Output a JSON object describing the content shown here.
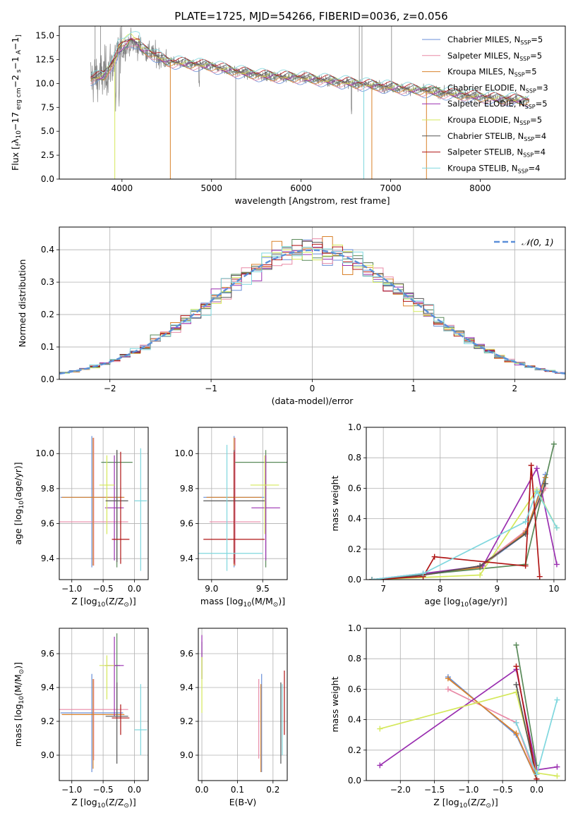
{
  "figure": {
    "title": "PLATE=1725, MJD=54266, FIBERID=0036, z=0.056"
  },
  "chart_data": [
    {
      "id": "spectrum",
      "type": "line",
      "title": "PLATE=1725, MJD=54266, FIBERID=0036, z=0.056",
      "xlabel": "wavelength [Angstrom, rest frame]",
      "ylabel_parts": [
        "Flux [",
        "f",
        "λ",
        "10",
        "−17",
        " erg cm",
        "−2",
        " s",
        "−1",
        " A",
        "−1",
        "]"
      ],
      "xlim": [
        3300,
        8950
      ],
      "ylim": [
        0,
        16
      ],
      "xticks": [
        4000,
        5000,
        6000,
        7000,
        8000
      ],
      "yticks": [
        0.0,
        2.5,
        5.0,
        7.5,
        10.0,
        12.5,
        15.0
      ],
      "legend_position": "top-right",
      "data_color": "#808080",
      "continuum": [
        [
          3650,
          10.5
        ],
        [
          3800,
          10.8
        ],
        [
          3950,
          13.0
        ],
        [
          4100,
          14.2
        ],
        [
          4300,
          13.3
        ],
        [
          4500,
          12.3
        ],
        [
          4800,
          12.0
        ],
        [
          5000,
          11.8
        ],
        [
          5300,
          11.2
        ],
        [
          5600,
          10.8
        ],
        [
          6000,
          10.6
        ],
        [
          6300,
          10.3
        ],
        [
          6600,
          10.0
        ],
        [
          7000,
          9.6
        ],
        [
          7400,
          9.2
        ],
        [
          7800,
          8.8
        ],
        [
          8200,
          8.4
        ],
        [
          8550,
          8.2
        ]
      ],
      "series": [
        {
          "name": "Chabrier MILES",
          "nssp": "5",
          "color": "#6a8fd8"
        },
        {
          "name": "Salpeter MILES",
          "nssp": "5",
          "color": "#e889a6"
        },
        {
          "name": "Kroupa MILES",
          "nssp": "5",
          "color": "#d9822b"
        },
        {
          "name": "Chabrier ELODIE",
          "nssp": "3",
          "color": "#5a8a5a"
        },
        {
          "name": "Salpeter ELODIE",
          "nssp": "5",
          "color": "#9a2fb0"
        },
        {
          "name": "Kroupa ELODIE",
          "nssp": "5",
          "color": "#d4e85a"
        },
        {
          "name": "Chabrier STELIB",
          "nssp": "4",
          "color": "#555555"
        },
        {
          "name": "Salpeter STELIB",
          "nssp": "4",
          "color": "#b01515"
        },
        {
          "name": "Kroupa STELIB",
          "nssp": "4",
          "color": "#7fd7de"
        }
      ]
    },
    {
      "id": "residuals",
      "type": "histogram",
      "xlabel": "(data-model)/error",
      "ylabel": "Normed distribution",
      "xlim": [
        -2.5,
        2.5
      ],
      "ylim": [
        0,
        0.47
      ],
      "xticks": [
        -2,
        -1,
        0,
        1,
        2
      ],
      "yticks": [
        0.0,
        0.1,
        0.2,
        0.3,
        0.4
      ],
      "legend": {
        "label": "𝒩(0, 1)",
        "position": "top-right"
      },
      "gaussian": {
        "mean": 0,
        "sigma": 1,
        "color": "#5b8fd8"
      },
      "bin_width": 0.1
    },
    {
      "id": "age_vs_Z",
      "type": "scatter",
      "xlabel_parts": [
        "Z [log",
        "10",
        "(Z/Z",
        "⊙",
        ")]"
      ],
      "ylabel_parts": [
        "age  [log",
        "10",
        "(age/yr)]"
      ],
      "xlim": [
        -1.2,
        0.22
      ],
      "ylim": [
        9.28,
        10.15
      ],
      "xticks": [
        -1.0,
        -0.5,
        0.0
      ],
      "yticks": [
        9.4,
        9.6,
        9.8,
        10.0
      ],
      "points": [
        {
          "x": -0.68,
          "y": 9.75,
          "xerr": 0.5,
          "yerr_lo": 0.4,
          "yerr_hi": 0.35,
          "color": "#6a8fd8"
        },
        {
          "x": -0.65,
          "y": 9.61,
          "xerr": 0.55,
          "yerr_lo": 0.25,
          "yerr_hi": 0.48,
          "color": "#e889a6"
        },
        {
          "x": -0.66,
          "y": 9.75,
          "xerr": 0.5,
          "yerr_lo": 0.39,
          "yerr_hi": 0.34,
          "color": "#d9822b"
        },
        {
          "x": -0.28,
          "y": 9.95,
          "xerr": 0.25,
          "yerr_lo": 0.6,
          "yerr_hi": 0.07,
          "color": "#5a8a5a"
        },
        {
          "x": -0.32,
          "y": 9.69,
          "xerr": 0.15,
          "yerr_lo": 0.3,
          "yerr_hi": 0.3,
          "color": "#9a2fb0"
        },
        {
          "x": -0.44,
          "y": 9.82,
          "xerr": 0.12,
          "yerr_lo": 0.28,
          "yerr_hi": 0.17,
          "color": "#d4e85a"
        },
        {
          "x": -0.28,
          "y": 9.73,
          "xerr": 0.18,
          "yerr_lo": 0.35,
          "yerr_hi": 0.29,
          "color": "#555555"
        },
        {
          "x": -0.22,
          "y": 9.51,
          "xerr": 0.14,
          "yerr_lo": 0.14,
          "yerr_hi": 0.5,
          "color": "#b01515"
        },
        {
          "x": 0.1,
          "y": 9.73,
          "xerr": 0.1,
          "yerr_lo": 0.4,
          "yerr_hi": 0.3,
          "color": "#7fd7de"
        }
      ]
    },
    {
      "id": "age_vs_mass",
      "type": "scatter",
      "xlabel_parts": [
        "mass [log",
        "10",
        "(M/M",
        "⊙",
        ")]"
      ],
      "xlim": [
        8.87,
        9.74
      ],
      "ylim": [
        9.28,
        10.15
      ],
      "xticks": [
        9.0,
        9.5
      ],
      "yticks": [
        9.4,
        9.6,
        9.8,
        10.0
      ],
      "points": [
        {
          "x": 9.22,
          "y": 9.75,
          "xerr": 0.3,
          "yerr_lo": 0.4,
          "yerr_hi": 0.35,
          "color": "#6a8fd8"
        },
        {
          "x": 9.23,
          "y": 9.61,
          "xerr": 0.25,
          "yerr_lo": 0.25,
          "yerr_hi": 0.48,
          "color": "#e889a6"
        },
        {
          "x": 9.22,
          "y": 9.75,
          "xerr": 0.27,
          "yerr_lo": 0.39,
          "yerr_hi": 0.34,
          "color": "#d9822b"
        },
        {
          "x": 9.53,
          "y": 9.95,
          "xerr": 0.3,
          "yerr_lo": 0.6,
          "yerr_hi": 0.07,
          "color": "#5a8a5a"
        },
        {
          "x": 9.53,
          "y": 9.69,
          "xerr": 0.14,
          "yerr_lo": 0.3,
          "yerr_hi": 0.3,
          "color": "#9a2fb0"
        },
        {
          "x": 9.52,
          "y": 9.82,
          "xerr": 0.14,
          "yerr_lo": 0.28,
          "yerr_hi": 0.17,
          "color": "#d4e85a"
        },
        {
          "x": 9.22,
          "y": 9.73,
          "xerr": 0.3,
          "yerr_lo": 0.35,
          "yerr_hi": 0.29,
          "color": "#555555"
        },
        {
          "x": 9.22,
          "y": 9.51,
          "xerr": 0.3,
          "yerr_lo": 0.14,
          "yerr_hi": 0.5,
          "color": "#b01515"
        },
        {
          "x": 9.15,
          "y": 9.43,
          "xerr": 0.35,
          "yerr_lo": 0.1,
          "yerr_hi": 0.62,
          "color": "#7fd7de"
        }
      ]
    },
    {
      "id": "weight_vs_age",
      "type": "line",
      "xlabel_parts": [
        "age  [log",
        "10",
        "(age/yr)]"
      ],
      "ylabel": "mass weight",
      "xlim": [
        6.7,
        10.2
      ],
      "ylim": [
        0,
        1
      ],
      "xticks": [
        7,
        8,
        9,
        10
      ],
      "yticks": [
        0.0,
        0.2,
        0.4,
        0.6,
        0.8,
        1.0
      ],
      "series": [
        {
          "color": "#6a8fd8",
          "x": [
            6.8,
            7.7,
            8.7,
            9.5,
            9.85
          ],
          "y": [
            0.0,
            0.03,
            0.08,
            0.3,
            0.69
          ]
        },
        {
          "color": "#e889a6",
          "x": [
            6.8,
            7.7,
            8.7,
            9.5,
            9.85
          ],
          "y": [
            0.0,
            0.03,
            0.09,
            0.32,
            0.6
          ]
        },
        {
          "color": "#d9822b",
          "x": [
            6.8,
            7.7,
            8.7,
            9.5,
            9.85
          ],
          "y": [
            0.0,
            0.03,
            0.08,
            0.31,
            0.67
          ]
        },
        {
          "color": "#5a8a5a",
          "x": [
            6.8,
            9.5,
            10.0
          ],
          "y": [
            0.0,
            0.1,
            0.89
          ]
        },
        {
          "color": "#9a2fb0",
          "x": [
            6.8,
            7.7,
            8.75,
            9.7,
            10.05
          ],
          "y": [
            0.0,
            0.04,
            0.09,
            0.73,
            0.1
          ]
        },
        {
          "color": "#d4e85a",
          "x": [
            6.8,
            8.7,
            9.7,
            10.05
          ],
          "y": [
            0.0,
            0.03,
            0.59,
            0.34
          ]
        },
        {
          "color": "#555555",
          "x": [
            6.8,
            7.7,
            8.7,
            9.5,
            9.85
          ],
          "y": [
            0.0,
            0.03,
            0.09,
            0.3,
            0.63
          ]
        },
        {
          "color": "#b01515",
          "x": [
            6.8,
            7.7,
            7.9,
            9.5,
            9.6,
            9.75
          ],
          "y": [
            0.0,
            0.02,
            0.15,
            0.09,
            0.75,
            0.02
          ]
        },
        {
          "color": "#7fd7de",
          "x": [
            6.8,
            7.7,
            9.5,
            9.7,
            10.05
          ],
          "y": [
            0.0,
            0.04,
            0.38,
            0.58,
            0.34
          ]
        }
      ]
    },
    {
      "id": "mass_vs_Z",
      "type": "scatter",
      "xlabel_parts": [
        "Z [log",
        "10",
        "(Z/Z",
        "⊙",
        ")]"
      ],
      "ylabel_parts": [
        "mass [log",
        "10",
        "(M/M",
        "⊙",
        ")]"
      ],
      "xlim": [
        -1.2,
        0.22
      ],
      "ylim": [
        8.85,
        9.75
      ],
      "xticks": [
        -1.0,
        -0.5,
        0.0
      ],
      "yticks": [
        9.0,
        9.2,
        9.4,
        9.6
      ],
      "points": [
        {
          "x": -0.68,
          "y": 9.25,
          "xerr": 0.5,
          "yerr_lo": 0.35,
          "yerr_hi": 0.23,
          "color": "#6a8fd8"
        },
        {
          "x": -0.65,
          "y": 9.27,
          "xerr": 0.55,
          "yerr_lo": 0.3,
          "yerr_hi": 0.18,
          "color": "#e889a6"
        },
        {
          "x": -0.66,
          "y": 9.24,
          "xerr": 0.5,
          "yerr_lo": 0.32,
          "yerr_hi": 0.21,
          "color": "#d9822b"
        },
        {
          "x": -0.28,
          "y": 9.53,
          "xerr": 0.05,
          "yerr_lo": 0.3,
          "yerr_hi": 0.19,
          "color": "#5a8a5a"
        },
        {
          "x": -0.32,
          "y": 9.53,
          "xerr": 0.15,
          "yerr_lo": 0.3,
          "yerr_hi": 0.17,
          "color": "#9a2fb0"
        },
        {
          "x": -0.44,
          "y": 9.53,
          "xerr": 0.12,
          "yerr_lo": 0.2,
          "yerr_hi": 0.06,
          "color": "#d4e85a"
        },
        {
          "x": -0.28,
          "y": 9.23,
          "xerr": 0.18,
          "yerr_lo": 0.28,
          "yerr_hi": 0.2,
          "color": "#555555"
        },
        {
          "x": -0.22,
          "y": 9.22,
          "xerr": 0.14,
          "yerr_lo": 0.1,
          "yerr_hi": 0.08,
          "color": "#b01515"
        },
        {
          "x": 0.1,
          "y": 9.15,
          "xerr": 0.1,
          "yerr_lo": 0.15,
          "yerr_hi": 0.27,
          "color": "#7fd7de"
        }
      ]
    },
    {
      "id": "mass_vs_ebv",
      "type": "scatter",
      "xlabel": "E(B-V)",
      "xlim": [
        -0.01,
        0.24
      ],
      "ylim": [
        8.85,
        9.75
      ],
      "xticks": [
        0.0,
        0.1,
        0.2
      ],
      "yticks": [
        9.0,
        9.2,
        9.4,
        9.6
      ],
      "points": [
        {
          "x": 0.168,
          "y": 9.25,
          "yerr_lo": 0.35,
          "yerr_hi": 0.23,
          "color": "#6a8fd8"
        },
        {
          "x": 0.16,
          "y": 9.2,
          "yerr_lo": 0.22,
          "yerr_hi": 0.25,
          "color": "#e889a6"
        },
        {
          "x": 0.166,
          "y": 9.2,
          "yerr_lo": 0.3,
          "yerr_hi": 0.22,
          "color": "#d9822b"
        },
        {
          "x": 0.0,
          "y": 9.55,
          "yerr_lo": 0.1,
          "yerr_hi": 0.12,
          "color": "#5a8a5a"
        },
        {
          "x": 0.0,
          "y": 9.55,
          "yerr_lo": 0.1,
          "yerr_hi": 0.16,
          "color": "#9a2fb0"
        },
        {
          "x": 0.0,
          "y": 9.45,
          "yerr_lo": 0.2,
          "yerr_hi": 0.13,
          "color": "#d4e85a"
        },
        {
          "x": 0.222,
          "y": 9.2,
          "yerr_lo": 0.25,
          "yerr_hi": 0.23,
          "color": "#555555"
        },
        {
          "x": 0.232,
          "y": 9.3,
          "yerr_lo": 0.18,
          "yerr_hi": 0.2,
          "color": "#b01515"
        },
        {
          "x": 0.226,
          "y": 9.2,
          "yerr_lo": 0.2,
          "yerr_hi": 0.22,
          "color": "#7fd7de"
        }
      ]
    },
    {
      "id": "weight_vs_Z",
      "type": "line",
      "xlabel_parts": [
        "Z [log",
        "10",
        "(Z/Z",
        "⊙",
        ")]"
      ],
      "ylabel": "mass weight",
      "xlim": [
        -2.5,
        0.42
      ],
      "ylim": [
        0,
        1
      ],
      "xticks": [
        -2.0,
        -1.5,
        -1.0,
        -0.5,
        0.0
      ],
      "yticks": [
        0.0,
        0.2,
        0.4,
        0.6,
        0.8,
        1.0
      ],
      "series": [
        {
          "color": "#6a8fd8",
          "x": [
            -1.3,
            -0.3,
            0.0
          ],
          "y": [
            0.68,
            0.3,
            0.01
          ]
        },
        {
          "color": "#e889a6",
          "x": [
            -1.3,
            -0.3,
            0.0
          ],
          "y": [
            0.6,
            0.38,
            0.01
          ]
        },
        {
          "color": "#d9822b",
          "x": [
            -1.3,
            -0.3,
            0.0
          ],
          "y": [
            0.67,
            0.31,
            0.01
          ]
        },
        {
          "color": "#5a8a5a",
          "x": [
            -0.3,
            0.0
          ],
          "y": [
            0.89,
            0.1
          ]
        },
        {
          "color": "#9a2fb0",
          "x": [
            -2.3,
            -0.3,
            0.0,
            0.3
          ],
          "y": [
            0.1,
            0.73,
            0.07,
            0.09
          ]
        },
        {
          "color": "#d4e85a",
          "x": [
            -2.3,
            -0.3,
            0.0,
            0.3
          ],
          "y": [
            0.34,
            0.58,
            0.05,
            0.03
          ]
        },
        {
          "color": "#555555",
          "x": [
            -0.3,
            0.0
          ],
          "y": [
            0.63,
            0.01
          ]
        },
        {
          "color": "#b01515",
          "x": [
            -0.3,
            0.0
          ],
          "y": [
            0.75,
            0.01
          ]
        },
        {
          "color": "#7fd7de",
          "x": [
            -0.3,
            0.0,
            0.3
          ],
          "y": [
            0.38,
            0.04,
            0.53
          ]
        }
      ]
    }
  ]
}
